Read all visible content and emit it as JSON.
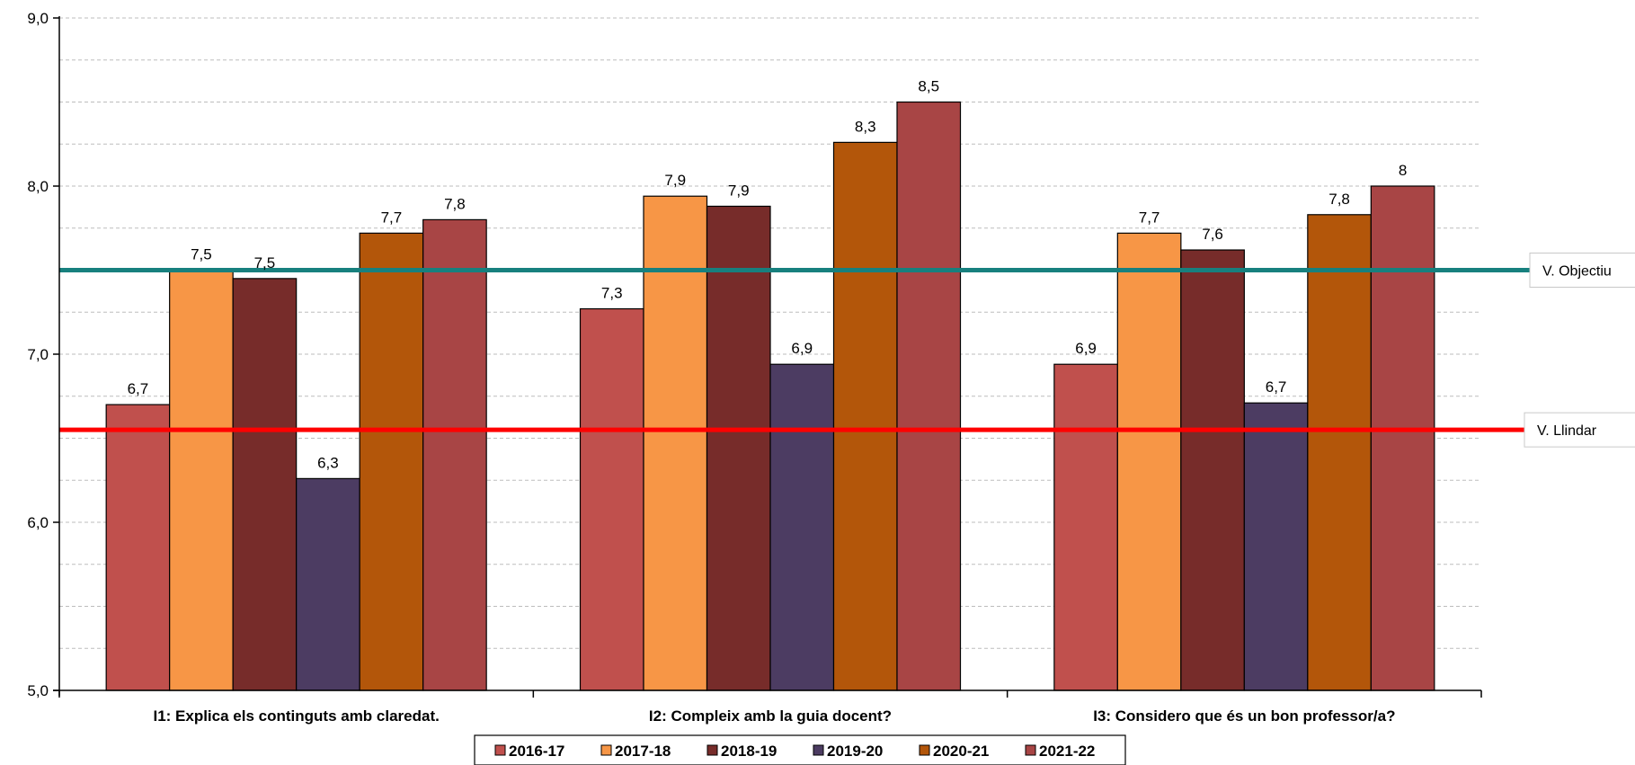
{
  "chart_data": {
    "type": "bar",
    "categories": [
      "I1: Explica els continguts amb claredat.",
      "I2: Compleix amb la guia docent?",
      "I3: Considero que és un bon professor/a?"
    ],
    "series": [
      {
        "name": "2016-17",
        "color": "#c0504d",
        "values": [
          6.7,
          7.27,
          6.94
        ],
        "labels": [
          "6,7",
          "7,3",
          "6,9"
        ]
      },
      {
        "name": "2017-18",
        "color": "#f79646",
        "values": [
          7.5,
          7.94,
          7.72
        ],
        "labels": [
          "7,5",
          "7,9",
          "7,7"
        ]
      },
      {
        "name": "2018-19",
        "color": "#772c2a",
        "values": [
          7.45,
          7.88,
          7.62
        ],
        "labels": [
          "7,5",
          "7,9",
          "7,6"
        ]
      },
      {
        "name": "2019-20",
        "color": "#4c3c62",
        "values": [
          6.26,
          6.94,
          6.71
        ],
        "labels": [
          "6,3",
          "6,9",
          "6,7"
        ]
      },
      {
        "name": "2020-21",
        "color": "#b3560a",
        "values": [
          7.72,
          8.26,
          7.83
        ],
        "labels": [
          "7,7",
          "8,3",
          "7,8"
        ]
      },
      {
        "name": "2021-22",
        "color": "#a84545",
        "values": [
          7.8,
          8.5,
          8.0
        ],
        "labels": [
          "7,8",
          "8,5",
          "8"
        ]
      }
    ],
    "reference_lines": [
      {
        "name": "V. Objectiu",
        "value": 7.5,
        "color": "#17807e"
      },
      {
        "name": "V. Llindar",
        "value": 6.55,
        "color": "#ff0000"
      }
    ],
    "ylim": [
      5.0,
      9.0
    ],
    "yticks": [
      "5,0",
      "6,0",
      "7,0",
      "8,0",
      "9,0"
    ],
    "grid": true,
    "legend_position": "bottom",
    "title": "",
    "xlabel": "",
    "ylabel": ""
  }
}
